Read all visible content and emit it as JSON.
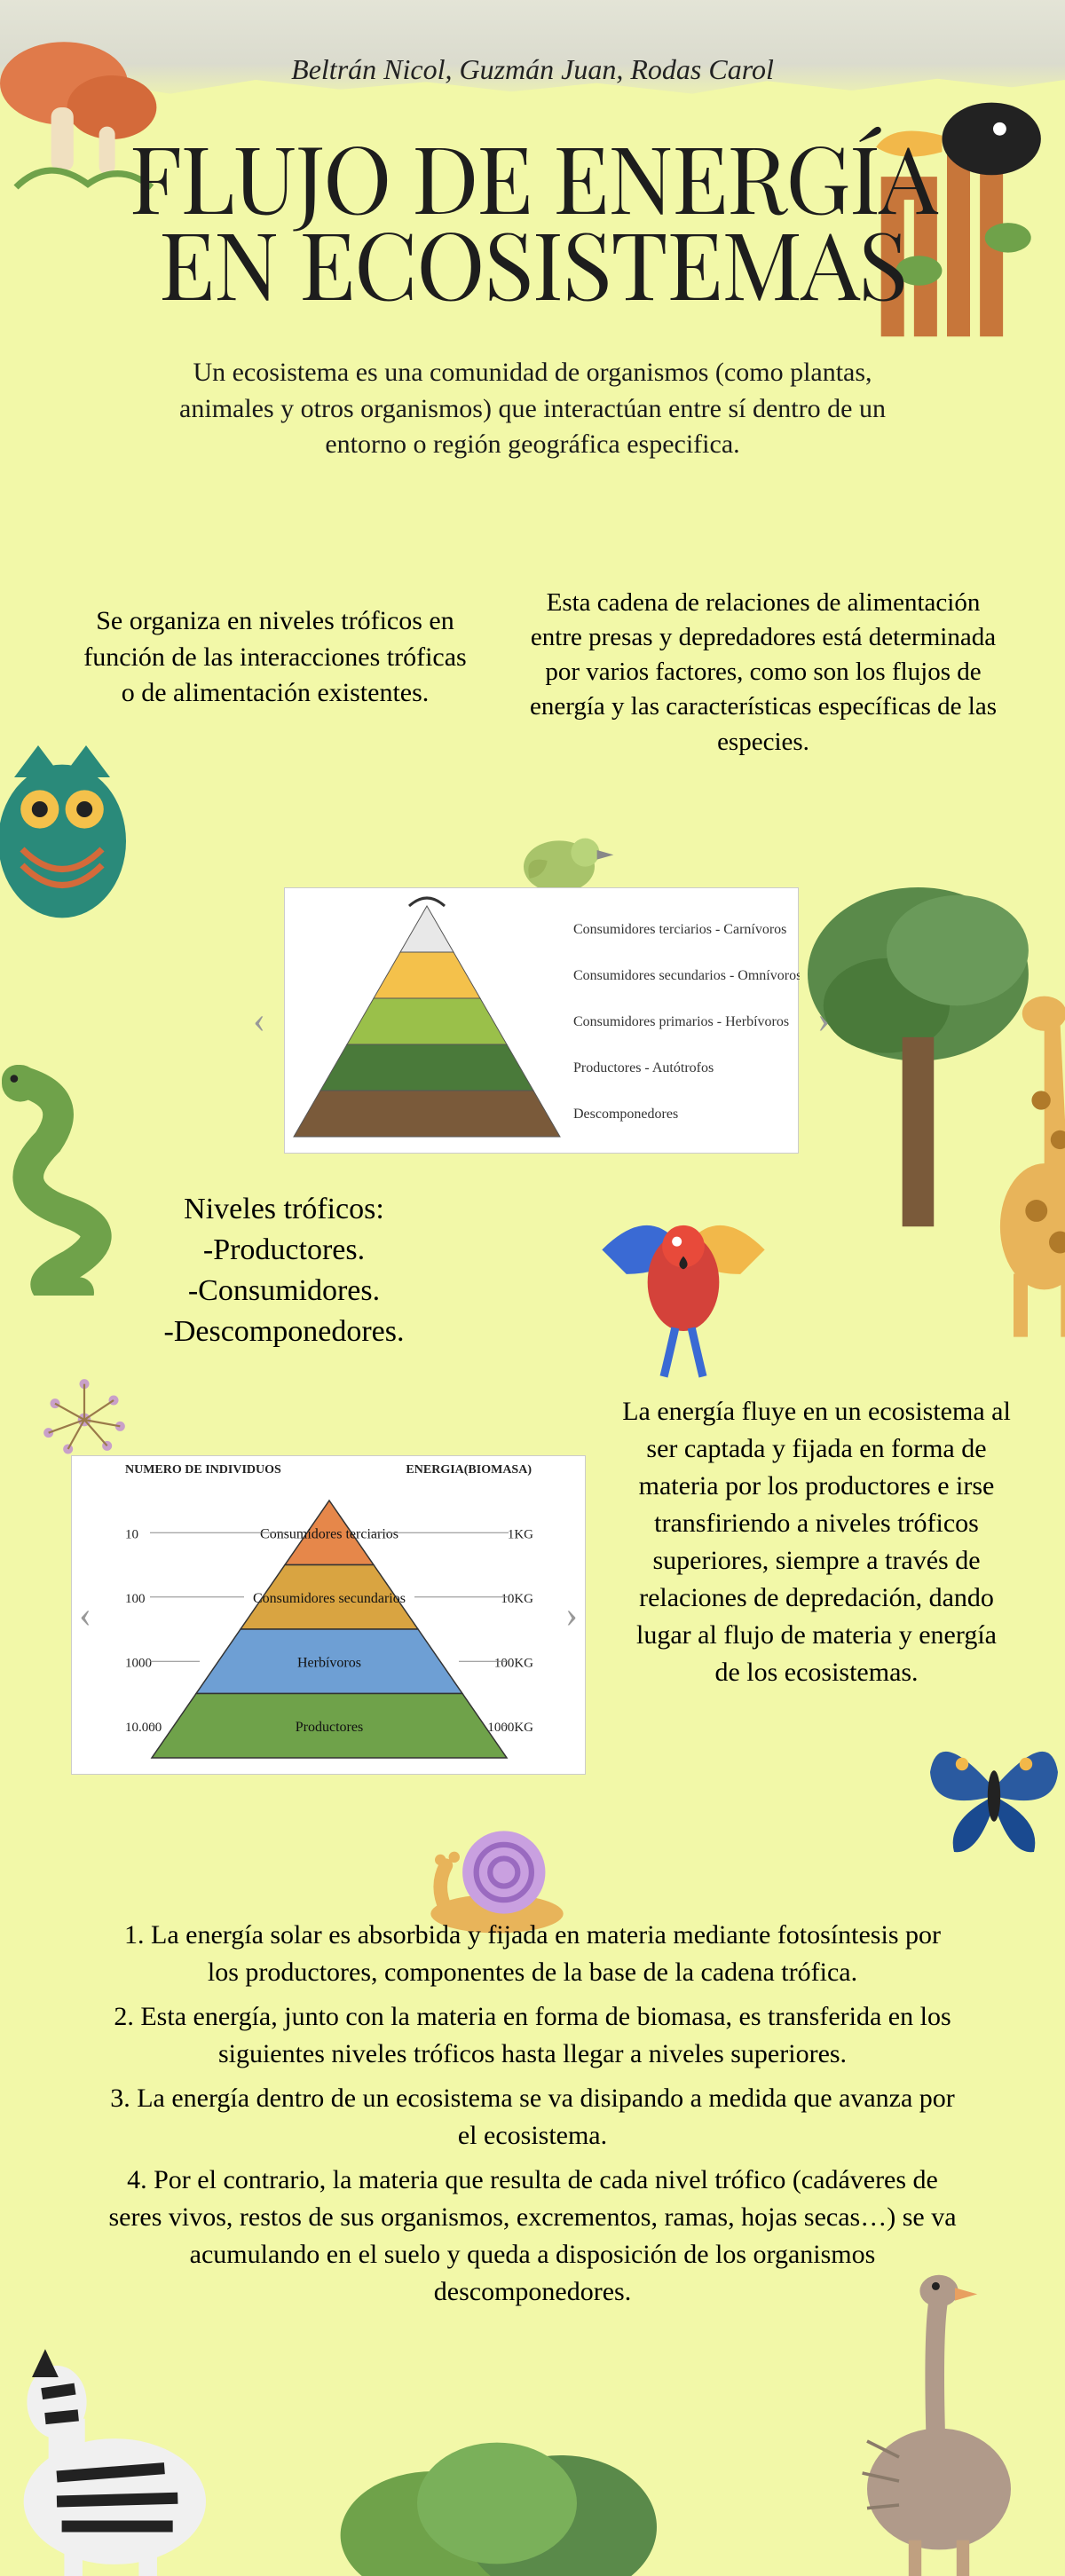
{
  "colors": {
    "background": "#f2f8a8",
    "title": "#1d1d1d",
    "text": "#1a1a1a",
    "paper": "#dcdcd6"
  },
  "authors": "Beltrán Nicol, Guzmán Juan, Rodas Carol",
  "title_line1": "FLUJO DE ENERGÍA",
  "title_line2": "EN ECOSISTEMAS",
  "intro": "Un ecosistema es una comunidad de organismos (como plantas, animales y otros organismos) que interactúan entre sí dentro de un entorno o región geográfica especifica.",
  "col_left": "Se organiza en niveles tróficos en función de las interacciones tróficas o de alimentación existentes.",
  "col_right": "Esta cadena de relaciones de alimentación entre presas y depredadores está determinada por varios factores, como son los flujos de energía y las características específicas de las especies.",
  "pyramid1": {
    "levels": [
      {
        "label": "Consumidores terciarios - Carnívoros",
        "color": "#e8e8e8"
      },
      {
        "label": "Consumidores secundarios - Omnívoros y carnívoros",
        "color": "#f4c14b"
      },
      {
        "label": "Consumidores primarios - Herbívoros",
        "color": "#9ac04a"
      },
      {
        "label": "Productores - Autótrofos",
        "color": "#4a7a3a"
      },
      {
        "label": "Descomponedores",
        "color": "#7a5a3a"
      }
    ]
  },
  "niveles": {
    "heading": "Niveles tróficos:",
    "items": [
      "-Productores.",
      "-Consumidores.",
      "-Descomponedores."
    ]
  },
  "pyramid2": {
    "header_left": "NUMERO DE INDIVIDUOS",
    "header_right": "ENERGIA(BIOMASA)",
    "levels": [
      {
        "label": "Consumidores terciarios",
        "count": "10",
        "energy": "1KG",
        "color": "#e6874a"
      },
      {
        "label": "Consumidores secundarios",
        "count": "100",
        "energy": "10KG",
        "color": "#d9a441"
      },
      {
        "label": "Herbívoros",
        "count": "1000",
        "energy": "100KG",
        "color": "#6e9fd4"
      },
      {
        "label": "Productores",
        "count": "10.000",
        "energy": "1000KG",
        "color": "#6fa24a"
      }
    ]
  },
  "energy_flow": "La energía fluye en un ecosistema al ser captada y fijada en forma de materia por los productores e irse transfiriendo a niveles tróficos superiores, siempre a través de relaciones de depredación, dando lugar al flujo de materia y energía de los ecosistemas.",
  "steps": [
    "1.      La energía solar es absorbida y fijada en materia mediante fotosíntesis por los productores, componentes de la base de la cadena trófica.",
    "2. Esta energía, junto con la materia en forma de biomasa, es transferida en los siguientes niveles tróficos hasta llegar a niveles superiores.",
    "3. La energía dentro de un ecosistema se va disipando a medida que avanza por el ecosistema.",
    "4. Por el contrario, la materia que resulta de cada nivel trófico (cadáveres de seres vivos, restos de sus organismos, excrementos, ramas, hojas secas…) se va acumulando en el suelo y queda a disposición de los organismos descomponedores."
  ],
  "deco": {
    "mushroom": "#e07a4a",
    "toucan_body": "#222222",
    "toucan_beak": "#f2b84a",
    "branch": "#c7763a",
    "owl": "#2a8a7a",
    "bird_green": "#a8c46a",
    "tree": "#5a8a4a",
    "giraffe": "#e8b45a",
    "snake": "#6fa24a",
    "sparkle": "#c9a0c9",
    "parrot_r": "#d4423a",
    "parrot_b": "#3a6ad4",
    "snail": "#c9a0e0",
    "butterfly": "#2a5aa0",
    "zebra": "#222222",
    "bush": "#6fa24a",
    "ostrich": "#b09a8a"
  }
}
